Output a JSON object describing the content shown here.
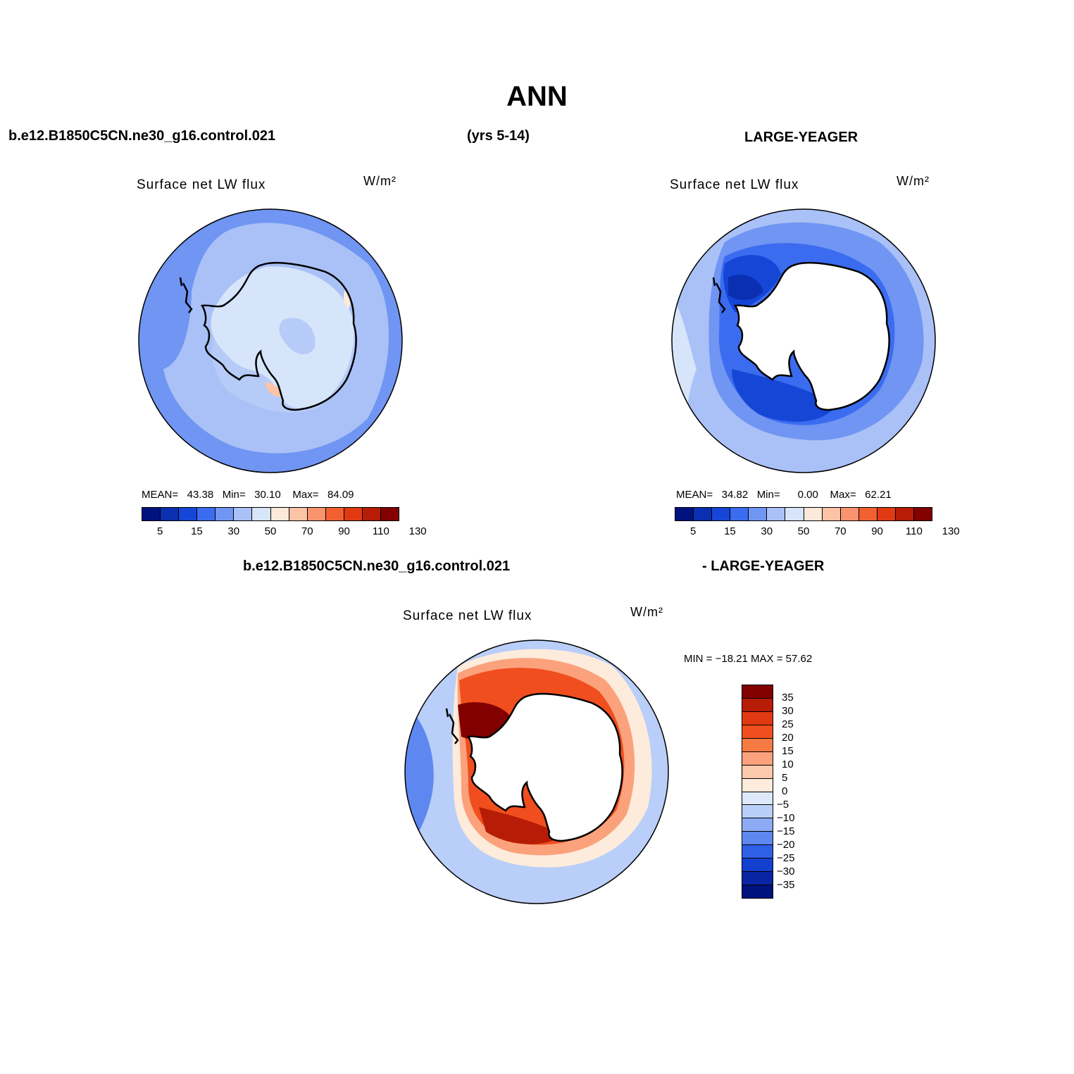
{
  "figure": {
    "title": "ANN",
    "top_left_label": "b.e12.B1850C5CN.ne30_g16.control.021",
    "top_center_label": "(yrs 5-14)",
    "top_right_label": "LARGE-YEAGER",
    "bottom_left_label": "b.e12.B1850C5CN.ne30_g16.control.021",
    "bottom_right_label": "- LARGE-YEAGER"
  },
  "panels": [
    {
      "title": "Surface net LW flux",
      "units": "W/m²",
      "stats": {
        "mean_label": "MEAN=",
        "mean": "43.38",
        "min_label": "Min=",
        "min": "30.10",
        "max_label": "Max=",
        "max": "84.09"
      }
    },
    {
      "title": "Surface net LW flux",
      "units": "W/m²",
      "stats": {
        "mean_label": "MEAN=",
        "mean": "34.82",
        "min_label": "Min=",
        "min": "0.00",
        "max_label": "Max=",
        "max": "62.21"
      }
    },
    {
      "title": "Surface net LW flux",
      "units": "W/m²",
      "stats": {
        "text": "MIN = −18.21 MAX =  57.62"
      }
    }
  ],
  "colorbar_abs": {
    "colors": [
      "#00127e",
      "#0a2fb0",
      "#1546d6",
      "#3b6cf0",
      "#7095f2",
      "#a9c1f7",
      "#d6e5fa",
      "#fde9d9",
      "#fcc3a6",
      "#f9946f",
      "#f26031",
      "#e13a12",
      "#b71c06",
      "#820000"
    ],
    "tick_labels": [
      "5",
      "15",
      "30",
      "50",
      "70",
      "90",
      "110",
      "130"
    ]
  },
  "colorbar_diff": {
    "colors": [
      "#820000",
      "#b71c06",
      "#e13a12",
      "#f04e1e",
      "#f77a45",
      "#fba27c",
      "#fdc9ac",
      "#fdebdc",
      "#dde9fa",
      "#b9cef8",
      "#8cabf4",
      "#5e88f0",
      "#2f5fe7",
      "#1440d0",
      "#0a25a3",
      "#00127e"
    ],
    "tick_labels": [
      "35",
      "30",
      "25",
      "20",
      "15",
      "10",
      "5",
      "0",
      "−5",
      "−10",
      "−15",
      "−20",
      "−25",
      "−30",
      "−35"
    ]
  },
  "chart_data": [
    {
      "type": "heatmap",
      "title": "Surface net LW flux",
      "units": "W/m²",
      "case": "b.e12.B1850C5CN.ne30_g16.control.021",
      "levels": [
        5,
        10,
        15,
        20,
        30,
        40,
        50,
        60,
        70,
        80,
        90,
        100,
        110,
        120,
        130
      ],
      "stats": {
        "mean": 43.38,
        "min": 30.1,
        "max": 84.09
      }
    },
    {
      "type": "heatmap",
      "title": "Surface net LW flux",
      "units": "W/m²",
      "case": "LARGE-YEAGER",
      "levels": [
        5,
        10,
        15,
        20,
        30,
        40,
        50,
        60,
        70,
        80,
        90,
        100,
        110,
        120,
        130
      ],
      "stats": {
        "mean": 34.82,
        "min": 0.0,
        "max": 62.21
      }
    },
    {
      "type": "heatmap",
      "title": "Surface net LW flux",
      "units": "W/m²",
      "case": "b.e12.B1850C5CN.ne30_g16.control.021 - LARGE-YEAGER",
      "levels": [
        -35,
        -30,
        -25,
        -20,
        -15,
        -10,
        -5,
        0,
        5,
        10,
        15,
        20,
        25,
        30,
        35
      ],
      "stats": {
        "min": -18.21,
        "max": 57.62
      }
    }
  ]
}
